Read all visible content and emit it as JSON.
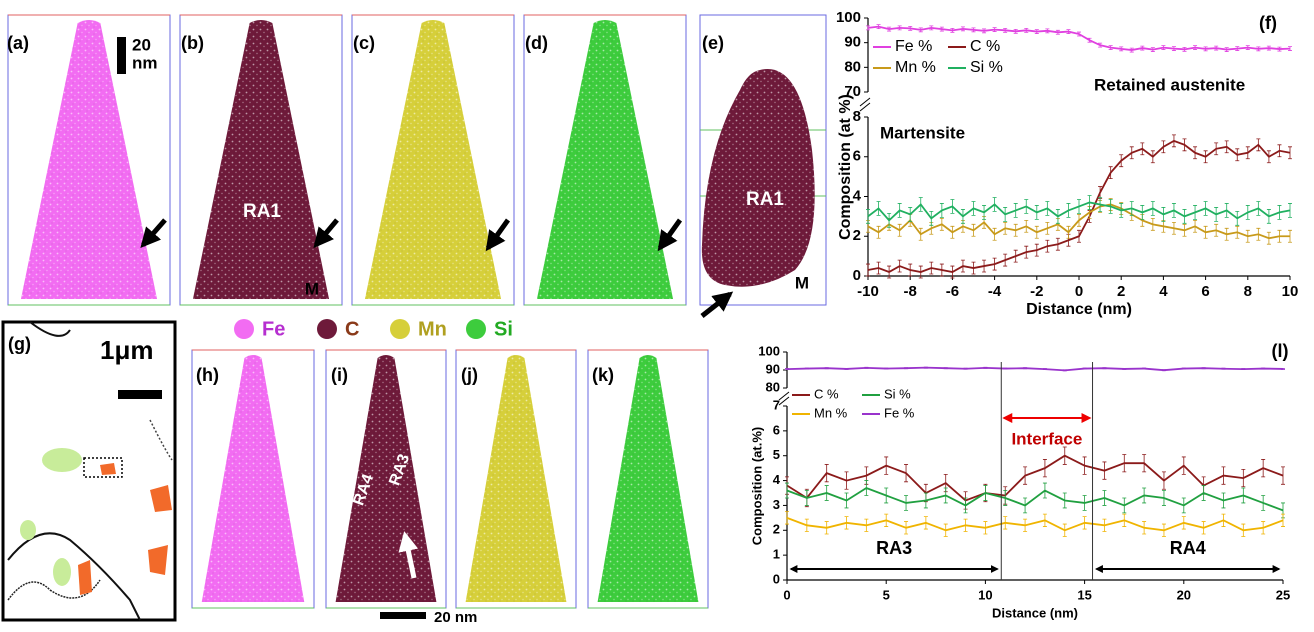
{
  "figure": {
    "panel_labels": [
      "(a)",
      "(b)",
      "(c)",
      "(d)",
      "(e)",
      "(g)",
      "(h)",
      "(i)",
      "(j)",
      "(k)"
    ],
    "scale_bar_top": [
      "20",
      "nm"
    ],
    "scale_bar_g": "1μm",
    "scale_bar_bottom": "20 nm",
    "tip_labels": [
      "RA1",
      "M",
      "RA1",
      "M",
      "RA3",
      "RA4"
    ],
    "element_legend": [
      {
        "name": "Fe",
        "color": "#f26cf2",
        "text_color": "#b62fd0"
      },
      {
        "name": "C",
        "color": "#6e1a3a",
        "text_color": "#8a3a1a"
      },
      {
        "name": "Mn",
        "color": "#d6cf3a",
        "text_color": "#b0a020"
      },
      {
        "name": "Si",
        "color": "#3dcc3d",
        "text_color": "#22aa22"
      }
    ]
  },
  "chart_data": [
    {
      "type": "line",
      "panel_label": "(f)",
      "x_label": "Distance (nm)",
      "y_label": "Composition (at %)",
      "annotations": [
        "Martensite",
        "Retained austenite"
      ],
      "xlim": [
        -10,
        10
      ],
      "xticks": [
        -10,
        -8,
        -6,
        -4,
        -2,
        0,
        2,
        4,
        6,
        8,
        10
      ],
      "ylim": [
        0,
        8
      ],
      "yticks": [
        0,
        2,
        4,
        6,
        8
      ],
      "y2lim": [
        70,
        100
      ],
      "y2ticks": [
        70,
        80,
        90,
        100
      ],
      "x": [
        -10,
        -9.5,
        -9,
        -8.5,
        -8,
        -7.5,
        -7,
        -6.5,
        -6,
        -5.5,
        -5,
        -4.5,
        -4,
        -3.5,
        -3,
        -2.5,
        -2,
        -1.5,
        -1,
        -0.5,
        0,
        0.5,
        1,
        1.5,
        2,
        2.5,
        3,
        3.5,
        4,
        4.5,
        5,
        5.5,
        6,
        6.5,
        7,
        7.5,
        8,
        8.5,
        9,
        9.5,
        10
      ],
      "series": [
        {
          "name": "Fe %",
          "color": "#e040e0",
          "axis": "y2",
          "error": 0.8,
          "values": [
            96,
            96.5,
            95.5,
            96,
            95.8,
            95.2,
            96,
            95.5,
            95,
            95.6,
            95.2,
            94.8,
            95.3,
            95,
            94.6,
            95,
            94.5,
            94.8,
            94.2,
            94.5,
            93.5,
            91,
            89,
            88,
            87.5,
            87,
            87.8,
            87.2,
            88,
            87.6,
            87.3,
            88,
            87.5,
            87.8,
            87.2,
            87.6,
            88,
            87.5,
            87.8,
            87.4,
            87.6
          ]
        },
        {
          "name": "C %",
          "color": "#8b1a1a",
          "error": 0.3,
          "values": [
            0.3,
            0.4,
            0.2,
            0.5,
            0.3,
            0.2,
            0.4,
            0.3,
            0.2,
            0.5,
            0.4,
            0.5,
            0.6,
            0.8,
            1.0,
            1.2,
            1.3,
            1.5,
            1.6,
            1.8,
            2.0,
            3.0,
            4.2,
            5.2,
            5.8,
            6.2,
            6.4,
            6.0,
            6.5,
            6.8,
            6.6,
            6.2,
            6.0,
            6.4,
            6.5,
            6.1,
            6.2,
            6.6,
            6.0,
            6.3,
            6.2
          ]
        },
        {
          "name": "Mn %",
          "color": "#c89a1a",
          "error": 0.3,
          "values": [
            2.5,
            2.2,
            2.6,
            2.3,
            2.8,
            2.1,
            2.4,
            2.6,
            2.2,
            2.5,
            2.3,
            2.7,
            2.1,
            2.4,
            2.3,
            2.5,
            2.2,
            2.4,
            2.6,
            2.2,
            2.8,
            3.2,
            3.5,
            3.6,
            3.4,
            3.1,
            2.8,
            2.6,
            2.5,
            2.4,
            2.3,
            2.5,
            2.2,
            2.3,
            2.1,
            2.2,
            2.0,
            2.1,
            1.9,
            2.0,
            2.0
          ]
        },
        {
          "name": "Si %",
          "color": "#20b060",
          "error": 0.35,
          "values": [
            3.0,
            3.4,
            2.8,
            3.3,
            3.1,
            3.6,
            2.9,
            3.3,
            3.5,
            3.0,
            3.4,
            3.2,
            3.6,
            3.1,
            3.3,
            3.5,
            3.2,
            3.4,
            3.0,
            3.3,
            3.5,
            3.7,
            3.6,
            3.5,
            3.3,
            3.4,
            3.2,
            3.4,
            3.1,
            3.3,
            3.0,
            3.2,
            3.4,
            3.1,
            3.3,
            2.9,
            3.2,
            3.4,
            3.0,
            3.2,
            3.3
          ]
        }
      ]
    },
    {
      "type": "line",
      "panel_label": "(l)",
      "x_label": "Distance (nm)",
      "y_label": "Composition (at.%)",
      "annotations": [
        "Interface",
        "RA3",
        "RA4"
      ],
      "interface_x": [
        10.8,
        15.4
      ],
      "xlim": [
        0,
        25
      ],
      "xticks": [
        0,
        5,
        10,
        15,
        20,
        25
      ],
      "ylim": [
        0,
        7
      ],
      "yticks": [
        0,
        1,
        2,
        3,
        4,
        5,
        6,
        7
      ],
      "y2lim": [
        80,
        100
      ],
      "y2ticks": [
        80,
        90,
        100
      ],
      "x": [
        0,
        1,
        2,
        3,
        4,
        5,
        6,
        7,
        8,
        9,
        10,
        11,
        12,
        13,
        14,
        15,
        16,
        17,
        18,
        19,
        20,
        21,
        22,
        23,
        24,
        25
      ],
      "series": [
        {
          "name": "C %",
          "color": "#8b1a1a",
          "error": 0.35,
          "values": [
            3.8,
            3.3,
            4.3,
            4.0,
            4.2,
            4.6,
            4.3,
            3.5,
            3.9,
            3.2,
            3.5,
            3.4,
            4.2,
            4.5,
            5.0,
            4.6,
            4.4,
            4.7,
            4.7,
            4.0,
            4.6,
            3.8,
            4.2,
            4.1,
            4.5,
            4.2
          ]
        },
        {
          "name": "Si %",
          "color": "#20a040",
          "error": 0.3,
          "values": [
            3.6,
            3.3,
            3.5,
            3.2,
            3.7,
            3.4,
            3.1,
            3.2,
            3.4,
            3.0,
            3.5,
            3.3,
            3.0,
            3.6,
            3.2,
            3.1,
            3.3,
            3.0,
            3.4,
            3.3,
            3.0,
            3.5,
            3.2,
            3.4,
            3.1,
            2.8
          ]
        },
        {
          "name": "Mn %",
          "color": "#f0b400",
          "error": 0.25,
          "values": [
            2.5,
            2.2,
            2.1,
            2.3,
            2.2,
            2.4,
            2.1,
            2.3,
            2.0,
            2.2,
            2.1,
            2.3,
            2.2,
            2.4,
            2.0,
            2.3,
            2.2,
            2.4,
            2.1,
            2.0,
            2.3,
            2.1,
            2.4,
            2.0,
            2.1,
            2.4
          ]
        },
        {
          "name": "Fe %",
          "color": "#9933cc",
          "axis": "y2",
          "error": 0.3,
          "values": [
            90.5,
            90.8,
            91,
            90.6,
            91.2,
            90.8,
            91,
            91.3,
            91,
            90.7,
            91.2,
            90.8,
            91,
            90.5,
            89.8,
            90.8,
            91,
            90.6,
            90.8,
            89.9,
            90.8,
            91,
            90.7,
            90.5,
            90.8,
            90.6
          ]
        }
      ]
    }
  ]
}
